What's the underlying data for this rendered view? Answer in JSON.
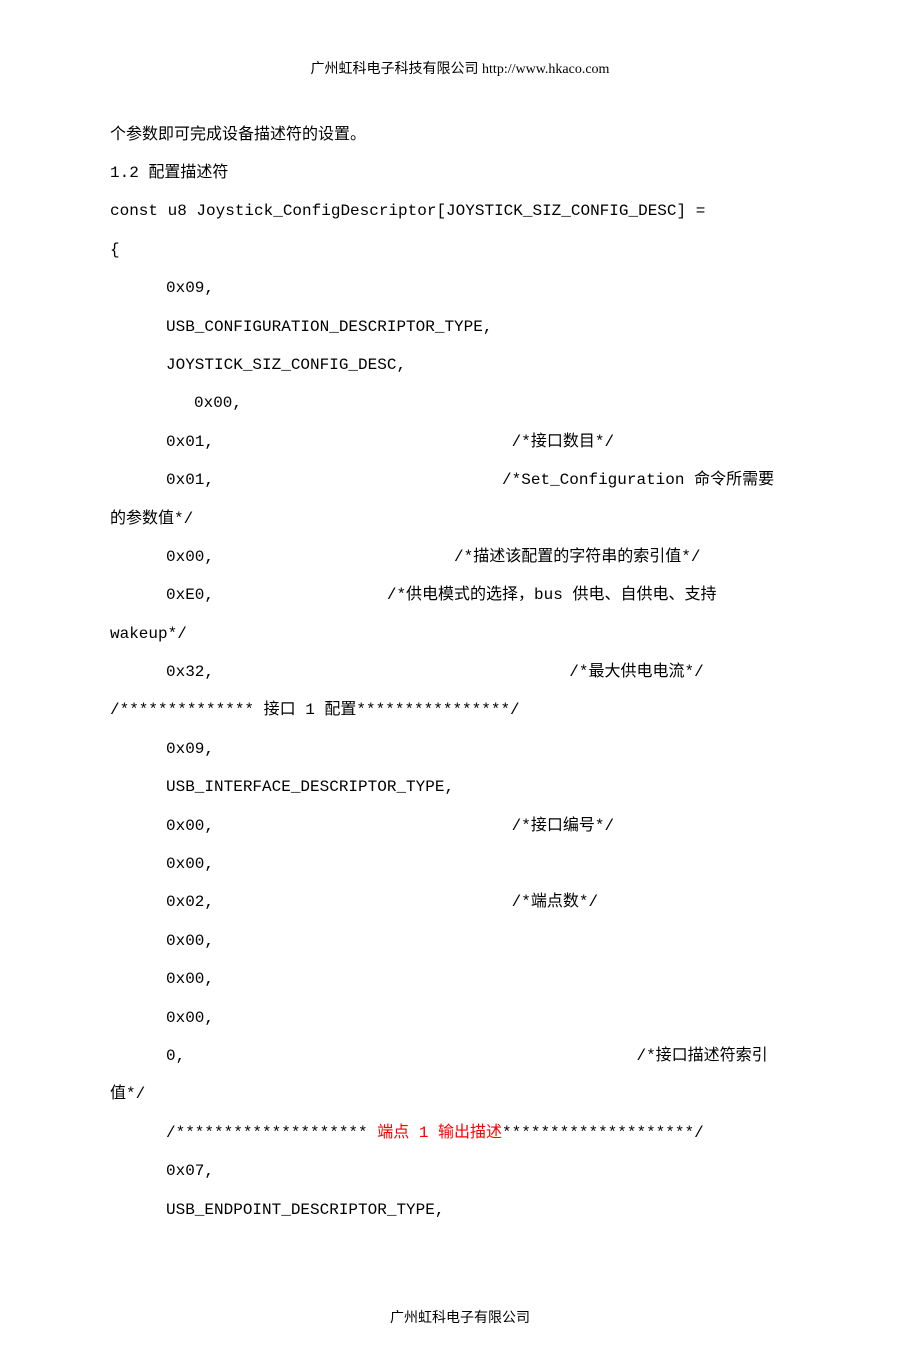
{
  "header": "广州虹科电子科技有限公司 http://www.hkaco.com",
  "footer": "广州虹科电子有限公司",
  "lines": [
    {
      "cls": "",
      "spans": [
        {
          "t": "个参数即可完成设备描述符的设置。"
        }
      ]
    },
    {
      "cls": "",
      "spans": [
        {
          "t": "1.2 配置描述符"
        }
      ]
    },
    {
      "cls": "",
      "spans": [
        {
          "t": "const u8 Joystick_ConfigDescriptor[JOYSTICK_SIZ_CONFIG_DESC] ="
        }
      ]
    },
    {
      "cls": "",
      "spans": [
        {
          "t": "{"
        }
      ]
    },
    {
      "cls": "indent1",
      "spans": [
        {
          "t": "0x09,"
        }
      ]
    },
    {
      "cls": "indent1",
      "spans": [
        {
          "t": "USB_CONFIGURATION_DESCRIPTOR_TYPE,"
        }
      ]
    },
    {
      "cls": "indent1",
      "spans": [
        {
          "t": "JOYSTICK_SIZ_CONFIG_DESC,"
        }
      ]
    },
    {
      "cls": "indent2",
      "spans": [
        {
          "t": "0x00,"
        }
      ]
    },
    {
      "cls": "indent1",
      "spans": [
        {
          "t": "0x01,                               /*接口数目*/"
        }
      ]
    },
    {
      "cls": "indent1",
      "spans": [
        {
          "t": "0x01,                              /*Set_Configuration 命令所需要"
        }
      ]
    },
    {
      "cls": "",
      "spans": [
        {
          "t": "的参数值*/"
        }
      ]
    },
    {
      "cls": "indent1",
      "spans": [
        {
          "t": "0x00,                         /*描述该配置的字符串的索引值*/"
        }
      ]
    },
    {
      "cls": "indent1",
      "spans": [
        {
          "t": "0xE0,                  /*供电模式的选择，bus 供电、自供电、支持"
        }
      ]
    },
    {
      "cls": "",
      "spans": [
        {
          "t": "wakeup*/"
        }
      ]
    },
    {
      "cls": "indent1",
      "spans": [
        {
          "t": "0x32,                                     /*最大供电电流*/"
        }
      ]
    },
    {
      "cls": "",
      "spans": [
        {
          "t": "/************** 接口 1 配置****************/"
        }
      ]
    },
    {
      "cls": "indent1",
      "spans": [
        {
          "t": "0x09,"
        }
      ]
    },
    {
      "cls": "indent1",
      "spans": [
        {
          "t": "USB_INTERFACE_DESCRIPTOR_TYPE,"
        }
      ]
    },
    {
      "cls": "indent1",
      "spans": [
        {
          "t": "0x00,                               /*接口编号*/"
        }
      ]
    },
    {
      "cls": "indent1",
      "spans": [
        {
          "t": "0x00,"
        }
      ]
    },
    {
      "cls": "indent1",
      "spans": [
        {
          "t": "0x02,                               /*端点数*/"
        }
      ]
    },
    {
      "cls": "indent1",
      "spans": [
        {
          "t": "0x00,"
        }
      ]
    },
    {
      "cls": "indent1",
      "spans": [
        {
          "t": "0x00,"
        }
      ]
    },
    {
      "cls": "indent1",
      "spans": [
        {
          "t": "0x00,"
        }
      ]
    },
    {
      "cls": "indent1",
      "spans": [
        {
          "t": "0,                                               /*接口描述符索引"
        }
      ]
    },
    {
      "cls": "",
      "spans": [
        {
          "t": "值*/"
        }
      ]
    },
    {
      "cls": "indent1",
      "spans": [
        {
          "t": "/******************** "
        },
        {
          "t": "端点 1 输出描述",
          "red": true
        },
        {
          "t": "********************/"
        }
      ]
    },
    {
      "cls": "indent1",
      "spans": [
        {
          "t": "0x07,"
        }
      ]
    },
    {
      "cls": "indent1",
      "spans": [
        {
          "t": "USB_ENDPOINT_DESCRIPTOR_TYPE,"
        }
      ]
    }
  ]
}
